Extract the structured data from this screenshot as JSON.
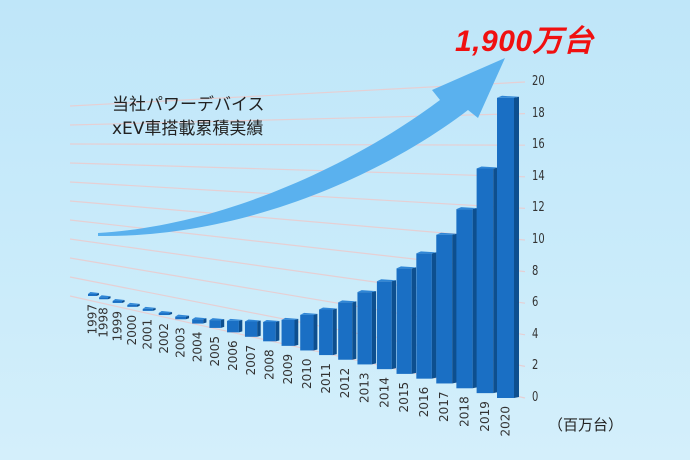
{
  "headline": "1,900万台",
  "subtitle": {
    "line1": "当社パワーデバイス",
    "line2": "xEV車搭載累積実績"
  },
  "unit_label": "（百万台）",
  "colors": {
    "background": "#c4e8fa",
    "bar_front": "#1a6fc4",
    "bar_side": "#0d4f8f",
    "bar_top": "#2f86d6",
    "arrow": "#5ab1ee",
    "headline": "#f01010",
    "gridline": "#e6cfd3"
  },
  "chart_data": {
    "type": "bar",
    "title": "当社パワーデバイス xEV車搭載累積実績",
    "annotation": "1,900万台",
    "xlabel": "",
    "ylabel": "（百万台）",
    "ylim": [
      0,
      20
    ],
    "yticks": [
      0,
      2,
      4,
      6,
      8,
      10,
      12,
      14,
      16,
      18,
      20
    ],
    "grid": true,
    "legend": "none",
    "style": "3d-perspective",
    "categories": [
      "1997",
      "1998",
      "1999",
      "2000",
      "2001",
      "2002",
      "2003",
      "2004",
      "2005",
      "2006",
      "2007",
      "2008",
      "2009",
      "2010",
      "2011",
      "2012",
      "2013",
      "2014",
      "2015",
      "2016",
      "2017",
      "2018",
      "2019",
      "2020"
    ],
    "values": [
      0.01,
      0.03,
      0.05,
      0.08,
      0.12,
      0.17,
      0.25,
      0.4,
      0.7,
      1.0,
      1.3,
      1.6,
      2.1,
      2.8,
      3.5,
      4.3,
      5.3,
      6.3,
      7.4,
      8.6,
      10.0,
      11.8,
      14.5,
      19.0
    ]
  }
}
